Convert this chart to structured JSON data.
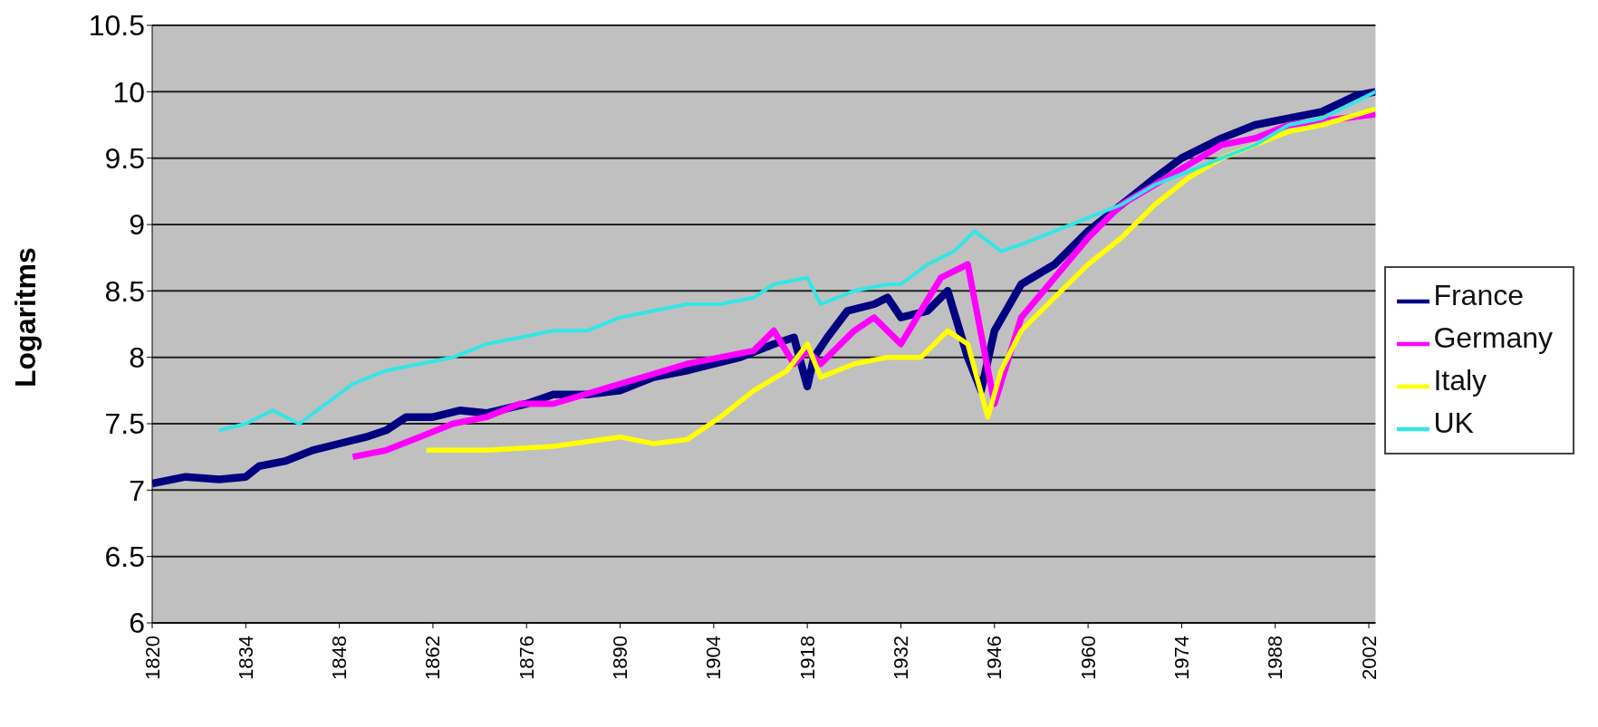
{
  "chart_data": {
    "type": "line",
    "ylabel": "Logaritms",
    "xlim": [
      1820,
      2003
    ],
    "xticks": [
      1820,
      1834,
      1848,
      1862,
      1876,
      1890,
      1904,
      1918,
      1932,
      1946,
      1960,
      1974,
      1988,
      2002
    ],
    "ylim": [
      6,
      10.5
    ],
    "yticks": [
      6,
      6.5,
      7,
      7.5,
      8,
      8.5,
      9,
      9.5,
      10,
      10.5
    ],
    "grid": "y",
    "legend": "right",
    "marker": "none",
    "line_style": "solid",
    "series": [
      {
        "name": "France",
        "color": "#000080",
        "x": [
          1820,
          1825,
          1830,
          1834,
          1836,
          1840,
          1844,
          1848,
          1852,
          1855,
          1858,
          1862,
          1866,
          1870,
          1876,
          1880,
          1885,
          1890,
          1895,
          1900,
          1904,
          1908,
          1913,
          1916,
          1918,
          1919,
          1921,
          1924,
          1928,
          1930,
          1932,
          1936,
          1939,
          1942,
          1944,
          1946,
          1950,
          1955,
          1960,
          1965,
          1970,
          1974,
          1980,
          1985,
          1990,
          1995,
          2000,
          2003
        ],
        "values": [
          7.05,
          7.1,
          7.08,
          7.1,
          7.18,
          7.22,
          7.3,
          7.35,
          7.4,
          7.45,
          7.55,
          7.55,
          7.6,
          7.58,
          7.65,
          7.72,
          7.72,
          7.75,
          7.85,
          7.9,
          7.95,
          8.0,
          8.1,
          8.15,
          7.78,
          8.0,
          8.15,
          8.35,
          8.4,
          8.45,
          8.3,
          8.35,
          8.5,
          8.0,
          7.75,
          8.2,
          8.55,
          8.7,
          8.95,
          9.15,
          9.35,
          9.5,
          9.65,
          9.75,
          9.8,
          9.85,
          9.97,
          10.0
        ]
      },
      {
        "name": "Germany",
        "color": "#ff00ff",
        "x": [
          1850,
          1855,
          1860,
          1865,
          1870,
          1875,
          1880,
          1890,
          1900,
          1910,
          1913,
          1916,
          1918,
          1920,
          1925,
          1928,
          1932,
          1935,
          1938,
          1942,
          1946,
          1950,
          1955,
          1960,
          1965,
          1970,
          1975,
          1980,
          1985,
          1990,
          1995,
          2003
        ],
        "values": [
          7.25,
          7.3,
          7.4,
          7.5,
          7.55,
          7.65,
          7.65,
          7.8,
          7.95,
          8.05,
          8.2,
          7.95,
          8.05,
          7.95,
          8.2,
          8.3,
          8.1,
          8.35,
          8.6,
          8.7,
          7.65,
          8.3,
          8.6,
          8.9,
          9.15,
          9.3,
          9.45,
          9.6,
          9.65,
          9.75,
          9.78,
          9.83
        ]
      },
      {
        "name": "Italy",
        "color": "#ffff00",
        "x": [
          1861,
          1865,
          1870,
          1880,
          1890,
          1895,
          1900,
          1905,
          1910,
          1915,
          1918,
          1920,
          1925,
          1930,
          1935,
          1939,
          1942,
          1945,
          1947,
          1950,
          1955,
          1960,
          1965,
          1970,
          1975,
          1980,
          1985,
          1990,
          1995,
          2003
        ],
        "values": [
          7.3,
          7.3,
          7.3,
          7.33,
          7.4,
          7.35,
          7.38,
          7.55,
          7.75,
          7.9,
          8.1,
          7.85,
          7.95,
          8.0,
          8.0,
          8.2,
          8.1,
          7.55,
          7.9,
          8.2,
          8.45,
          8.7,
          8.9,
          9.15,
          9.35,
          9.5,
          9.6,
          9.7,
          9.75,
          9.87
        ]
      },
      {
        "name": "UK",
        "color": "#33e6e6",
        "x": [
          1830,
          1834,
          1838,
          1842,
          1846,
          1850,
          1855,
          1860,
          1865,
          1870,
          1875,
          1880,
          1885,
          1890,
          1895,
          1900,
          1905,
          1910,
          1913,
          1918,
          1920,
          1925,
          1930,
          1932,
          1936,
          1940,
          1943,
          1947,
          1950,
          1955,
          1960,
          1965,
          1970,
          1975,
          1980,
          1985,
          1990,
          1995,
          2003
        ],
        "values": [
          7.45,
          7.5,
          7.6,
          7.5,
          7.65,
          7.8,
          7.9,
          7.95,
          8.0,
          8.1,
          8.15,
          8.2,
          8.2,
          8.3,
          8.35,
          8.4,
          8.4,
          8.45,
          8.55,
          8.6,
          8.4,
          8.5,
          8.55,
          8.55,
          8.7,
          8.8,
          8.95,
          8.8,
          8.85,
          8.95,
          9.05,
          9.15,
          9.3,
          9.4,
          9.5,
          9.6,
          9.75,
          9.8,
          10.0
        ]
      }
    ]
  }
}
